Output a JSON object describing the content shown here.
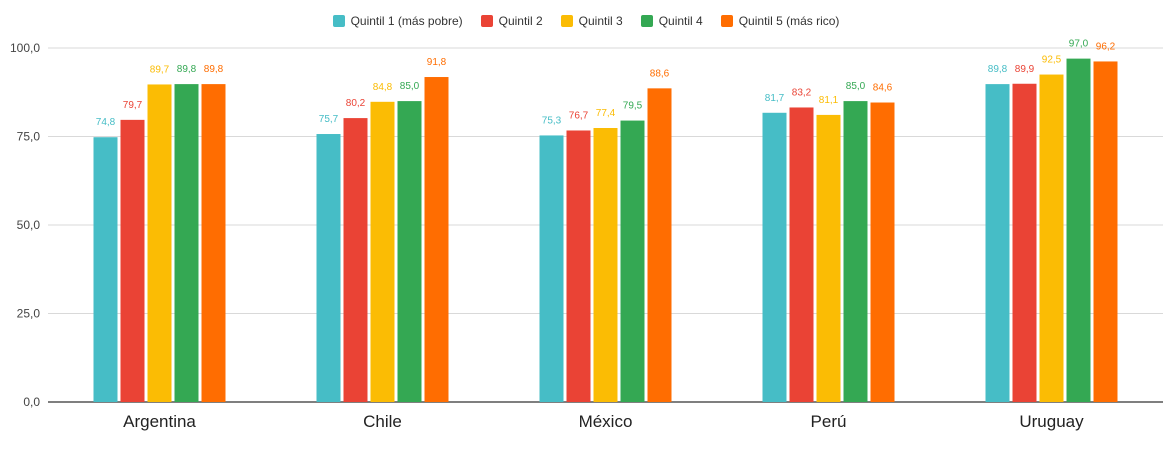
{
  "chart_data": {
    "type": "bar",
    "categories": [
      "Argentina",
      "Chile",
      "México",
      "Perú",
      "Uruguay"
    ],
    "series": [
      {
        "name": "Quintil 1 (más pobre)",
        "color": "#46bdc6",
        "values": [
          74.8,
          75.7,
          75.3,
          81.7,
          89.8
        ],
        "labels": [
          "74,8",
          "75,7",
          "75,3",
          "81,7",
          "89,8"
        ]
      },
      {
        "name": "Quintil 2",
        "color": "#ea4335",
        "values": [
          79.7,
          80.2,
          76.7,
          83.2,
          89.9
        ],
        "labels": [
          "79,7",
          "80,2",
          "76,7",
          "83,2",
          "89,9"
        ]
      },
      {
        "name": "Quintil 3",
        "color": "#fbbc04",
        "values": [
          89.7,
          84.8,
          77.4,
          81.1,
          92.5
        ],
        "labels": [
          "89,7",
          "84,8",
          "77,4",
          "81,1",
          "92,5"
        ]
      },
      {
        "name": "Quintil 4",
        "color": "#34a853",
        "values": [
          89.8,
          85.0,
          79.5,
          85.0,
          97.0
        ],
        "labels": [
          "89,8",
          "85,0",
          "79,5",
          "85,0",
          "97,0"
        ]
      },
      {
        "name": "Quintil 5 (más rico)",
        "color": "#ff6d01",
        "values": [
          89.8,
          91.8,
          88.6,
          84.6,
          96.2
        ],
        "labels": [
          "89,8",
          "91,8",
          "88,6",
          "84,6",
          "96,2"
        ]
      }
    ],
    "yticks": [
      0,
      25,
      50,
      75,
      100
    ],
    "ytick_labels": [
      "0,0",
      "25,0",
      "50,0",
      "75,0",
      "100,0"
    ],
    "ylim": [
      0,
      100
    ],
    "grid": true,
    "legend_position": "top-center",
    "title": "",
    "xlabel": "",
    "ylabel": ""
  }
}
